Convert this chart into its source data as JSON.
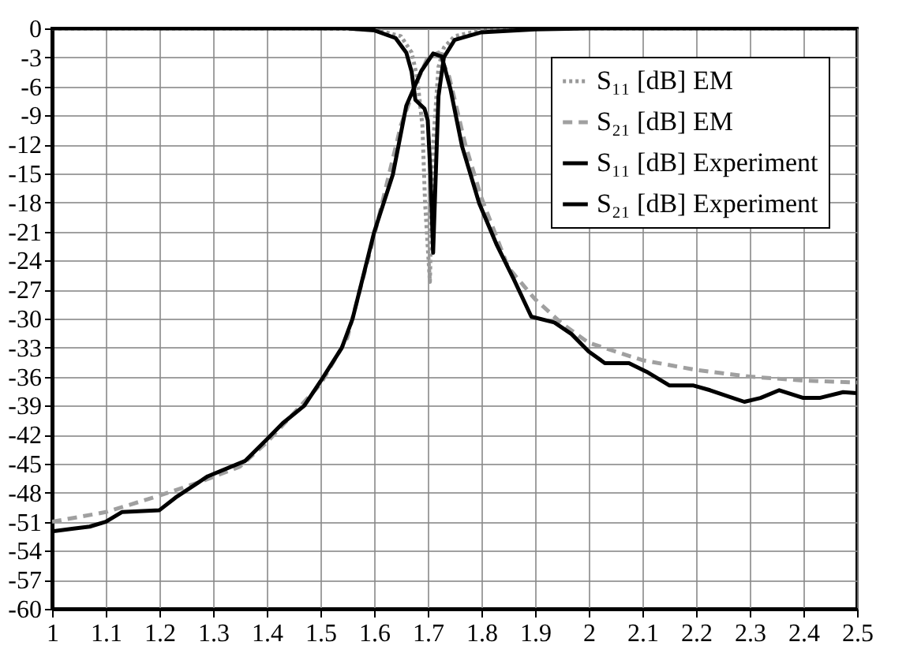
{
  "chart_data": {
    "type": "line",
    "xlim": [
      1,
      2.5
    ],
    "ylim": [
      -60,
      0
    ],
    "xticks": [
      1,
      1.1,
      1.2,
      1.3,
      1.4,
      1.5,
      1.6,
      1.7,
      1.8,
      1.9,
      2,
      2.1,
      2.2,
      2.3,
      2.4,
      2.5
    ],
    "yticks": [
      0,
      -3,
      -6,
      -9,
      -12,
      -15,
      -18,
      -21,
      -24,
      -27,
      -30,
      -33,
      -36,
      -39,
      -42,
      -45,
      -48,
      -51,
      -54,
      -57,
      -60
    ],
    "grid": true,
    "legend": "top right",
    "series": [
      {
        "name": "S₁₁ [dB] EM",
        "color": "#999999",
        "line_style": "dotted",
        "x": [
          1,
          1.5,
          1.6,
          1.65,
          1.67,
          1.68,
          1.69,
          1.695,
          1.704,
          1.71,
          1.72,
          1.73,
          1.75,
          1.8,
          1.9,
          2.5
        ],
        "values": [
          0,
          0,
          -0.1,
          -0.8,
          -2.5,
          -5,
          -10,
          -18,
          -26.2,
          -12,
          -4,
          -2,
          -0.8,
          -0.2,
          0,
          0
        ]
      },
      {
        "name": "S₂₁ [dB] EM",
        "color": "#a0a0a0",
        "line_style": "dashed",
        "x": [
          1,
          1.1,
          1.2,
          1.28,
          1.35,
          1.4,
          1.5,
          1.55,
          1.6,
          1.65,
          1.68,
          1.7,
          1.72,
          1.74,
          1.77,
          1.8,
          1.85,
          1.9,
          1.95,
          2,
          2.1,
          2.2,
          2.3,
          2.4,
          2.5
        ],
        "values": [
          -51,
          -50,
          -48.3,
          -46.8,
          -45.3,
          -42.8,
          -36.8,
          -32,
          -21.5,
          -10,
          -5.5,
          -3,
          -2.5,
          -5,
          -12,
          -17.5,
          -24.7,
          -28,
          -30.5,
          -32.5,
          -34.3,
          -35.3,
          -36,
          -36.4,
          -36.6
        ]
      },
      {
        "name": "S₁₁ [dB] Experiment",
        "color": "#000000",
        "line_style": "solid",
        "x": [
          1,
          1.55,
          1.6,
          1.64,
          1.66,
          1.67,
          1.677,
          1.694,
          1.7,
          1.705,
          1.71,
          1.715,
          1.72,
          1.73,
          1.75,
          1.8,
          1.9,
          2,
          2.5
        ],
        "values": [
          0,
          0,
          -0.2,
          -1,
          -2.5,
          -4.5,
          -7.4,
          -8.3,
          -9.5,
          -15,
          -23.2,
          -15,
          -7,
          -3,
          -1.2,
          -0.4,
          -0.1,
          0,
          0
        ]
      },
      {
        "name": "S₂₁ [dB] Experiment",
        "color": "#000000",
        "line_style": "solid",
        "x": [
          1,
          1.04,
          1.07,
          1.1,
          1.13,
          1.2,
          1.23,
          1.29,
          1.36,
          1.4,
          1.43,
          1.47,
          1.5,
          1.54,
          1.56,
          1.6,
          1.635,
          1.66,
          1.688,
          1.71,
          1.726,
          1.742,
          1.764,
          1.796,
          1.828,
          1.86,
          1.893,
          1.936,
          1.968,
          2,
          2.03,
          2.075,
          2.108,
          2.15,
          2.194,
          2.226,
          2.29,
          2.32,
          2.355,
          2.4,
          2.43,
          2.474,
          2.5
        ],
        "values": [
          -52,
          -51.7,
          -51.5,
          -51,
          -50,
          -49.8,
          -48.5,
          -46.3,
          -44.7,
          -42.5,
          -40.8,
          -39,
          -36.5,
          -33,
          -30,
          -21.1,
          -15.1,
          -8,
          -4.4,
          -2.6,
          -2.9,
          -6.2,
          -12.2,
          -18.1,
          -22.3,
          -25.9,
          -29.8,
          -30.4,
          -31.6,
          -33.4,
          -34.6,
          -34.6,
          -35.5,
          -36.9,
          -36.9,
          -37.4,
          -38.6,
          -38.2,
          -37.4,
          -38.2,
          -38.2,
          -37.6,
          -37.7
        ]
      }
    ]
  }
}
